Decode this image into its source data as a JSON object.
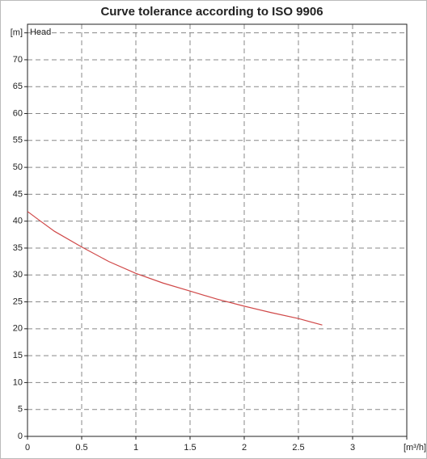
{
  "chart_data": {
    "type": "line",
    "title": "Curve tolerance according to ISO 9906",
    "y_label": "Head",
    "x": [
      0,
      0.1,
      0.25,
      0.5,
      0.75,
      1,
      1.25,
      1.5,
      1.75,
      2,
      2.25,
      2.5,
      2.72
    ],
    "series": [
      {
        "name": "Head",
        "color": "#d04848",
        "values": [
          41.8,
          40.3,
          38.1,
          35.2,
          32.5,
          30.3,
          28.5,
          27.0,
          25.5,
          24.2,
          23.0,
          21.9,
          20.7
        ]
      }
    ],
    "xlim": [
      0,
      3.5
    ],
    "xticks": [
      0,
      0.5,
      1,
      1.5,
      2,
      2.5,
      3,
      {
        "value": 3.5,
        "label": "[m³/h]"
      }
    ],
    "ylim": [
      0,
      76.6
    ],
    "yticks": [
      0,
      5,
      10,
      15,
      20,
      25,
      30,
      35,
      40,
      45,
      50,
      55,
      60,
      65,
      70,
      {
        "value": 75,
        "label": "[m]"
      }
    ],
    "grid": true
  }
}
